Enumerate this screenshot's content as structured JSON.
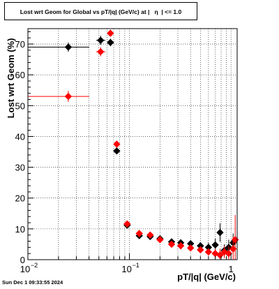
{
  "title": "Lost wrt Geom for Global vs pT/|q| (GeV/c) at |   η  | <= 1.0",
  "timestamp": "Sun Dec  1 09:33:55 2024",
  "chart_data": {
    "type": "scatter",
    "title": "Lost wrt Geom for Global vs pT/|q| (GeV/c) at |   η  | <= 1.0",
    "xlabel": "pT/|q| (GeV/c)",
    "ylabel": "Lost wrt Geom (%)",
    "xscale": "log",
    "xlim": [
      0.01,
      1.15
    ],
    "ylim": [
      0,
      75
    ],
    "grid": true,
    "x_tick_labels": [
      {
        "value": 0.01,
        "base": "10",
        "exp": "−2"
      },
      {
        "value": 0.1,
        "base": "10",
        "exp": "−1"
      },
      {
        "value": 1,
        "base": "1",
        "exp": ""
      }
    ],
    "y_ticks": [
      0,
      10,
      20,
      30,
      40,
      50,
      60,
      70
    ],
    "series": [
      {
        "color": "#000000",
        "points": [
          {
            "x": 0.025,
            "y": 69,
            "xlo": 0.01,
            "xhi": 0.04,
            "err": 1.5
          },
          {
            "x": 0.052,
            "y": 71.2,
            "xlo": 0.047,
            "xhi": 0.058,
            "err": 1.5
          },
          {
            "x": 0.065,
            "y": 70.5,
            "xlo": 0.062,
            "xhi": 0.068,
            "err": 1.2
          },
          {
            "x": 0.075,
            "y": 35.3,
            "xlo": 0.072,
            "xhi": 0.078,
            "err": 1.0
          },
          {
            "x": 0.095,
            "y": 11.2,
            "xlo": 0.09,
            "xhi": 0.1,
            "err": 1.0
          },
          {
            "x": 0.125,
            "y": 7.8,
            "xlo": 0.12,
            "xhi": 0.13,
            "err": 1.0
          },
          {
            "x": 0.16,
            "y": 7.5,
            "xlo": 0.155,
            "xhi": 0.165,
            "err": 0.8
          },
          {
            "x": 0.2,
            "y": 6.8,
            "xlo": 0.195,
            "xhi": 0.205,
            "err": 0.8
          },
          {
            "x": 0.26,
            "y": 5.8,
            "xlo": 0.25,
            "xhi": 0.27,
            "err": 0.8
          },
          {
            "x": 0.32,
            "y": 5.5,
            "xlo": 0.31,
            "xhi": 0.33,
            "err": 0.8
          },
          {
            "x": 0.4,
            "y": 5.2,
            "xlo": 0.39,
            "xhi": 0.41,
            "err": 1.0
          },
          {
            "x": 0.5,
            "y": 4.5,
            "xlo": 0.48,
            "xhi": 0.52,
            "err": 1.2
          },
          {
            "x": 0.6,
            "y": 4.0,
            "xlo": 0.58,
            "xhi": 0.62,
            "err": 1.5
          },
          {
            "x": 0.7,
            "y": 4.8,
            "xlo": 0.68,
            "xhi": 0.72,
            "err": 2.0
          },
          {
            "x": 0.78,
            "y": 8.8,
            "xlo": 0.76,
            "xhi": 0.8,
            "err": 3.0
          },
          {
            "x": 0.86,
            "y": 3.0,
            "xlo": 0.84,
            "xhi": 0.88,
            "err": 2.0
          },
          {
            "x": 0.95,
            "y": 4.0,
            "xlo": 0.93,
            "xhi": 0.97,
            "err": 2.5
          },
          {
            "x": 1.05,
            "y": 5.5,
            "xlo": 1.03,
            "xhi": 1.07,
            "err": 3.0
          }
        ]
      },
      {
        "color": "#ff0000",
        "points": [
          {
            "x": 0.025,
            "y": 53,
            "xlo": 0.01,
            "xhi": 0.04,
            "err": 1.8
          },
          {
            "x": 0.052,
            "y": 67.5,
            "xlo": 0.047,
            "xhi": 0.058,
            "err": 1.5
          },
          {
            "x": 0.065,
            "y": 73.5,
            "xlo": 0.062,
            "xhi": 0.068,
            "err": 1.0
          },
          {
            "x": 0.075,
            "y": 37.5,
            "xlo": 0.072,
            "xhi": 0.078,
            "err": 1.0
          },
          {
            "x": 0.095,
            "y": 11.6,
            "xlo": 0.09,
            "xhi": 0.1,
            "err": 0.8
          },
          {
            "x": 0.125,
            "y": 8.5,
            "xlo": 0.12,
            "xhi": 0.13,
            "err": 0.8
          },
          {
            "x": 0.16,
            "y": 8.0,
            "xlo": 0.155,
            "xhi": 0.165,
            "err": 0.6
          },
          {
            "x": 0.2,
            "y": 6.5,
            "xlo": 0.195,
            "xhi": 0.205,
            "err": 0.6
          },
          {
            "x": 0.26,
            "y": 5.0,
            "xlo": 0.25,
            "xhi": 0.27,
            "err": 0.6
          },
          {
            "x": 0.32,
            "y": 4.5,
            "xlo": 0.31,
            "xhi": 0.33,
            "err": 0.6
          },
          {
            "x": 0.4,
            "y": 3.8,
            "xlo": 0.39,
            "xhi": 0.41,
            "err": 0.8
          },
          {
            "x": 0.5,
            "y": 3.2,
            "xlo": 0.48,
            "xhi": 0.52,
            "err": 1.0
          },
          {
            "x": 0.6,
            "y": 2.5,
            "xlo": 0.58,
            "xhi": 0.62,
            "err": 1.2
          },
          {
            "x": 0.7,
            "y": 2.0,
            "xlo": 0.68,
            "xhi": 0.72,
            "err": 1.5
          },
          {
            "x": 0.78,
            "y": 1.5,
            "xlo": 0.76,
            "xhi": 0.8,
            "err": 2.0
          },
          {
            "x": 0.86,
            "y": 2.5,
            "xlo": 0.84,
            "xhi": 0.88,
            "err": 2.0
          },
          {
            "x": 0.95,
            "y": 2.0,
            "xlo": 0.93,
            "xhi": 0.97,
            "err": 2.5
          },
          {
            "x": 1.05,
            "y": 3.5,
            "xlo": 1.03,
            "xhi": 1.07,
            "err": 4.0
          },
          {
            "x": 1.1,
            "y": 6.5,
            "xlo": 1.08,
            "xhi": 1.12,
            "err": 8.0
          }
        ]
      }
    ]
  }
}
